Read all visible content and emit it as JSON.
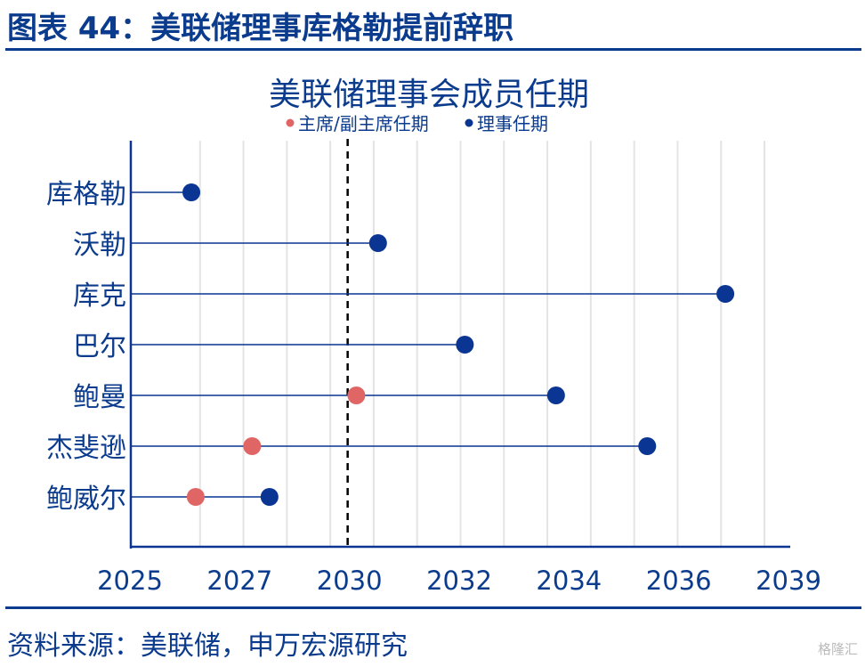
{
  "figure": {
    "title": "图表 44：美联储理事库格勒提前辞职",
    "source": "资料来源：美联储，申万宏源研究",
    "watermark": "格隆汇"
  },
  "colors": {
    "governor": "#0a3592",
    "chair": "#e06666",
    "text": "#0b3b8c",
    "grid": "#e4e4e4"
  },
  "chart_data": {
    "type": "scatter",
    "title": "美联储理事会成员任期",
    "legend": [
      {
        "name": "主席/副主席任期",
        "color": "#e06666"
      },
      {
        "name": "理事任期",
        "color": "#0a3592"
      }
    ],
    "legend_placement": "top-center",
    "categories": [
      "库格勒",
      "沃勒",
      "库克",
      "巴尔",
      "鲍曼",
      "杰斐逊",
      "鲍威尔"
    ],
    "x_ticks": [
      "2025",
      "2027",
      "2030",
      "2032",
      "2034",
      "2036",
      "2039"
    ],
    "xlim": [
      2025,
      2039
    ],
    "current_marker": 2029.4,
    "grid": "vertical",
    "series": [
      {
        "name": "理事任期",
        "values": [
          2025.8,
          2030.1,
          2038.1,
          2032.1,
          2034.2,
          2036.3,
          2027.6
        ]
      },
      {
        "name": "主席/副主席任期",
        "values": [
          null,
          null,
          null,
          null,
          2029.6,
          2027.2,
          2025.9
        ]
      }
    ]
  }
}
